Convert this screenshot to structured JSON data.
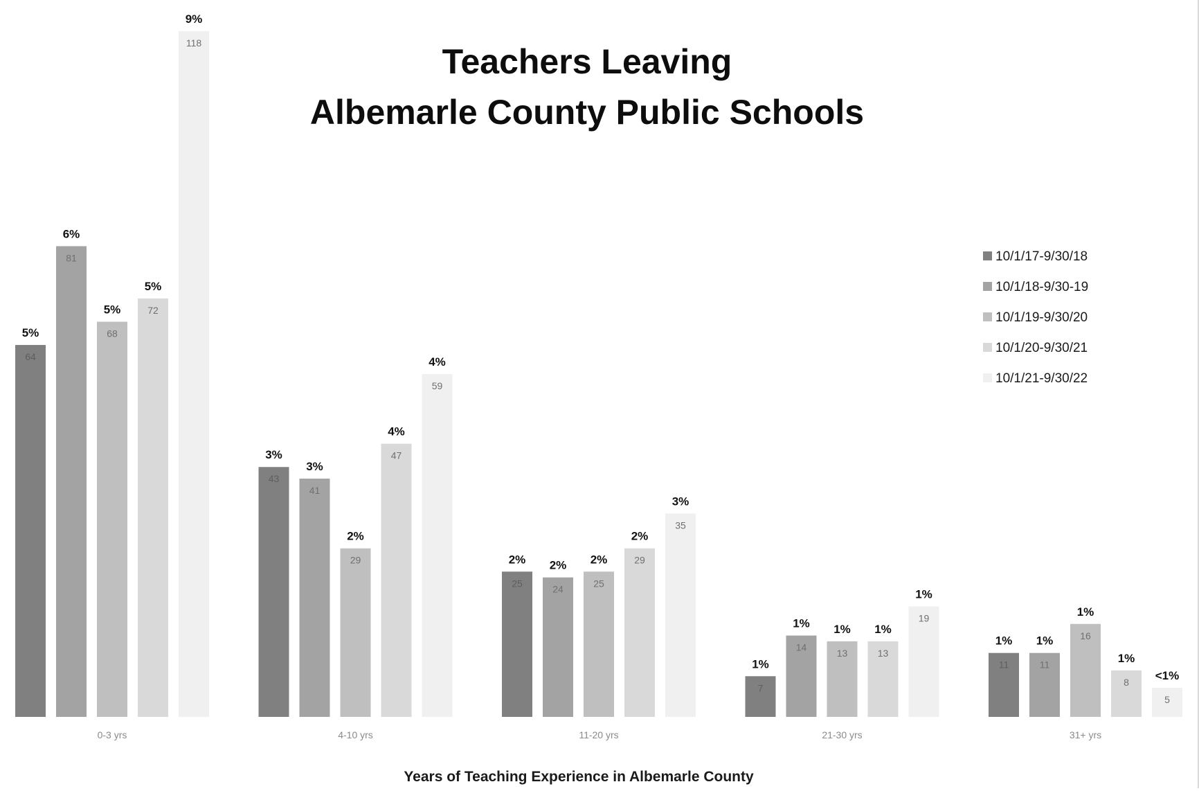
{
  "chart_data": {
    "type": "bar",
    "title": [
      "Teachers Leaving",
      "Albemarle County Public Schools"
    ],
    "xlabel": "Years of Teaching Experience in Albemarle County",
    "ylabel": "",
    "categories": [
      "0-3 yrs",
      "4-10 yrs",
      "11-20 yrs",
      "21-30 yrs",
      "31+ yrs"
    ],
    "ylim": [
      0,
      118
    ],
    "grid": false,
    "legend_position": "right",
    "series": [
      {
        "name": "10/1/17-9/30/18",
        "color": "#808080",
        "values": [
          64,
          43,
          25,
          7,
          11
        ],
        "pct_labels": [
          "5%",
          "3%",
          "2%",
          "1%",
          "1%"
        ]
      },
      {
        "name": "10/1/18-9/30-19",
        "color": "#a3a3a3",
        "values": [
          81,
          41,
          24,
          14,
          11
        ],
        "pct_labels": [
          "6%",
          "3%",
          "2%",
          "1%",
          "1%"
        ]
      },
      {
        "name": "10/1/19-9/30/20",
        "color": "#bfbfbf",
        "values": [
          68,
          29,
          25,
          13,
          16
        ],
        "pct_labels": [
          "5%",
          "2%",
          "2%",
          "1%",
          "1%"
        ]
      },
      {
        "name": "10/1/20-9/30/21",
        "color": "#d9d9d9",
        "values": [
          72,
          47,
          29,
          13,
          8
        ],
        "pct_labels": [
          "5%",
          "4%",
          "2%",
          "1%",
          "1%"
        ]
      },
      {
        "name": "10/1/21-9/30/22",
        "color": "#f0f0f0",
        "values": [
          118,
          59,
          35,
          19,
          5
        ],
        "pct_labels": [
          "9%",
          "4%",
          "3%",
          "1%",
          "<1%"
        ]
      }
    ]
  }
}
